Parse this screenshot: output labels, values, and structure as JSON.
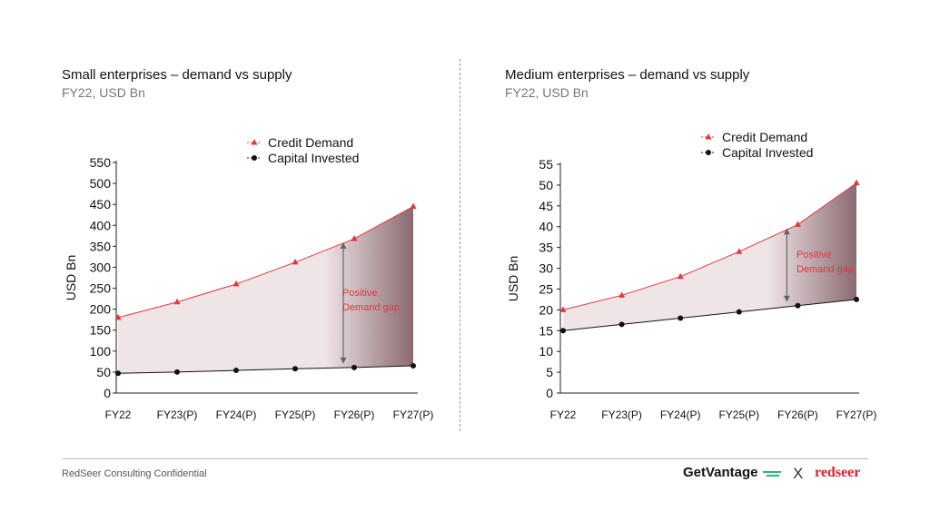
{
  "left_panel": {
    "title": "Small enterprises – demand vs supply",
    "subtitle": "FY22, USD Bn"
  },
  "right_panel": {
    "title": "Medium enterprises – demand vs supply",
    "subtitle": "FY22, USD Bn"
  },
  "footer": {
    "confidential": "RedSeer Consulting Confidential",
    "brand_getvantage": "GetVantage",
    "brand_separator": "X",
    "brand_redseer": "redseer"
  },
  "colors": {
    "demand": "#e0383e",
    "invested": "#111111",
    "gap_fill_light": "#efe4e6",
    "gap_fill_dark": "#8a6a70",
    "gap_label": "#e0383e",
    "brand_green": "#2bb673",
    "brand_red": "#d8202e"
  },
  "chart_data": [
    {
      "type": "area",
      "categories": [
        "FY22",
        "FY23(P)",
        "FY24(P)",
        "FY25(P)",
        "FY26(P)",
        "FY27(P)"
      ],
      "series": [
        {
          "name": "Credit Demand",
          "values": [
            180,
            217,
            260,
            312,
            368,
            445
          ],
          "marker": "triangle"
        },
        {
          "name": "Capital Invested",
          "values": [
            47,
            50,
            54,
            58,
            61,
            65
          ],
          "marker": "circle"
        }
      ],
      "title": "Small enterprises – demand vs supply",
      "subtitle": "FY22, USD Bn",
      "xlabel": "",
      "ylabel": "USD Bn",
      "ylim": [
        0,
        550
      ],
      "yticks": [
        0,
        50,
        100,
        150,
        200,
        250,
        300,
        350,
        400,
        450,
        500,
        550
      ],
      "legend_position": "top-center",
      "grid": false,
      "annotation": {
        "text_line1": "Positive",
        "text_line2": "Demand gap",
        "category_index": 4
      }
    },
    {
      "type": "area",
      "categories": [
        "FY22",
        "FY23(P)",
        "FY24(P)",
        "FY25(P)",
        "FY26(P)",
        "FY27(P)"
      ],
      "series": [
        {
          "name": "Credit Demand",
          "values": [
            20,
            23.5,
            28,
            34,
            40.5,
            50.5
          ],
          "marker": "triangle"
        },
        {
          "name": "Capital Invested",
          "values": [
            15,
            16.5,
            18,
            19.5,
            21,
            22.5
          ],
          "marker": "circle"
        }
      ],
      "title": "Medium enterprises – demand vs supply",
      "subtitle": "FY22, USD Bn",
      "xlabel": "",
      "ylabel": "USD Bn",
      "ylim": [
        0,
        55
      ],
      "yticks": [
        0,
        5,
        10,
        15,
        20,
        25,
        30,
        35,
        40,
        45,
        50,
        55
      ],
      "legend_position": "top-center",
      "grid": false,
      "annotation": {
        "text_line1": "Positive",
        "text_line2": "Demand gap",
        "category_index": 4
      }
    }
  ]
}
